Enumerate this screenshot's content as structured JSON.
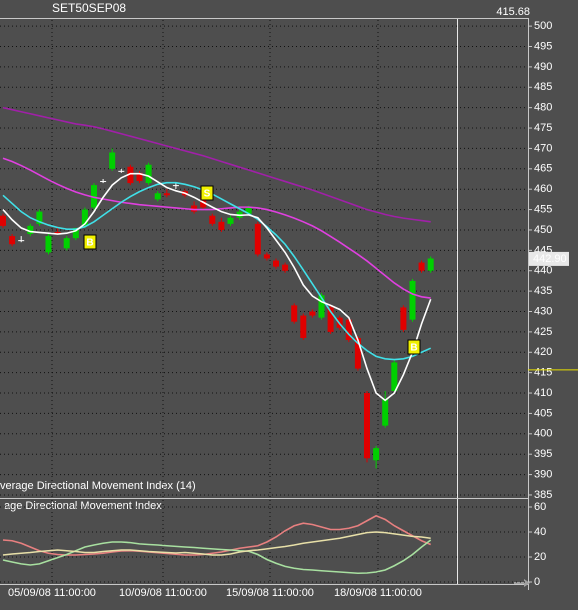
{
  "chart_data": [
    {
      "type": "candlestick",
      "title": "SET50SEP08",
      "cursor_price": 415.68,
      "last_price": {
        "value": 442.9,
        "label": "442.90"
      },
      "ylim": [
        384.5,
        501.5
      ],
      "yticks": [
        385,
        390,
        395,
        400,
        405,
        410,
        415,
        420,
        425,
        430,
        435,
        440,
        445,
        450,
        455,
        460,
        465,
        470,
        475,
        480,
        485,
        490,
        495,
        500
      ],
      "grid": true,
      "x_labels": [
        "05/09/08 11:00:00",
        "10/09/08 11:00:00",
        "15/09/08 11:00:00",
        "18/09/08 11:00:00"
      ],
      "up_color": "#00d000",
      "down_color": "#e00000",
      "flat_color": "#ffffff",
      "candles": {
        "open": [
          453.5,
          448.5,
          447.5,
          449,
          451.5,
          444.5,
          449.5,
          445.5,
          448,
          451,
          455.5,
          462,
          465,
          464.5,
          465.5,
          464,
          461.5,
          457.5,
          459,
          461,
          459.5,
          456,
          458,
          453.5,
          452,
          451.5,
          453,
          454,
          451.5,
          444,
          442.5,
          441.5,
          431.5,
          429,
          430,
          428.5,
          431,
          428.5,
          428,
          423.5,
          410,
          393.5,
          402,
          410.5,
          431,
          428,
          442,
          440
        ],
        "high": [
          454,
          449,
          448.5,
          451.5,
          455,
          449,
          450.5,
          448.5,
          450.5,
          455.5,
          461.5,
          462.5,
          470,
          465,
          466,
          464.5,
          466.5,
          459.5,
          460,
          461.5,
          460,
          457,
          458.5,
          454,
          453,
          453.5,
          455,
          456,
          452,
          444.5,
          443,
          442,
          432,
          429.5,
          430.5,
          434.5,
          431.5,
          429,
          428.5,
          424,
          410.5,
          397,
          410.5,
          418,
          431.5,
          438,
          442.5,
          443.5
        ],
        "low": [
          450.5,
          446,
          447,
          448.5,
          451,
          444,
          449,
          445,
          447.5,
          450.5,
          455,
          461.5,
          464.5,
          464,
          461,
          461.5,
          461,
          457,
          458,
          460,
          458,
          454,
          455,
          451,
          449.5,
          451,
          452.5,
          453.5,
          443.5,
          442.5,
          440.5,
          439.5,
          427,
          423,
          428.5,
          428,
          424.5,
          425.5,
          422.5,
          415.5,
          393,
          391.5,
          401.5,
          410,
          425,
          427.5,
          439.5,
          439.5
        ],
        "close": [
          451,
          446.5,
          447.5,
          451,
          454.5,
          448.5,
          449,
          448,
          450.5,
          455,
          461,
          462,
          469,
          464.5,
          461.5,
          462,
          466,
          459,
          458.5,
          461,
          458.5,
          454.5,
          455.5,
          451.5,
          450,
          453,
          454.5,
          455.5,
          444,
          443,
          441,
          440,
          427.5,
          423.5,
          429,
          434,
          425,
          426,
          423,
          416,
          394,
          396.5,
          408.5,
          417.5,
          425.5,
          437.5,
          440,
          443
        ]
      },
      "signals": [
        "B",
        "S",
        "B"
      ],
      "lines": [
        {
          "color": "#a020a8",
          "values": [
            480,
            479.5,
            479,
            478.5,
            478,
            477.5,
            477,
            476.5,
            476,
            475.7,
            475.3,
            474.8,
            474.2,
            473.6,
            473,
            472.4,
            471.8,
            471.2,
            470.6,
            470,
            469.4,
            468.8,
            468.2,
            467.5,
            466.8,
            466.1,
            465.4,
            464.7,
            464,
            463.3,
            462.6,
            461.9,
            461.2,
            460.5,
            459.8,
            459,
            458.2,
            457.4,
            456.6,
            455.8,
            455,
            454.4,
            453.8,
            453.3,
            452.9,
            452.6,
            452.3,
            452
          ]
        },
        {
          "color": "#e040e0",
          "values": [
            467.6,
            466.8,
            465.8,
            464.7,
            463.5,
            462.3,
            461.2,
            460.2,
            459.3,
            458.6,
            458,
            457.6,
            457.2,
            456.8,
            456.5,
            456.2,
            456,
            455.8,
            455.6,
            455.4,
            455.2,
            455,
            455,
            455,
            455.2,
            455.4,
            455.6,
            455.6,
            455.4,
            455,
            454.4,
            453.7,
            452.9,
            452,
            451,
            449.8,
            448.4,
            447,
            445.5,
            444,
            442.4,
            440.6,
            438.8,
            437,
            435.5,
            434.3,
            433.6,
            433.3
          ]
        },
        {
          "color": "#40e0e8",
          "values": [
            458.5,
            456.5,
            454.5,
            453,
            452,
            451.2,
            450.6,
            450.2,
            450.2,
            450.8,
            452,
            453.6,
            455.2,
            456.8,
            458.2,
            459.4,
            460.4,
            461.2,
            461.6,
            461.6,
            461.2,
            460.6,
            459.8,
            458.8,
            457.6,
            456.4,
            455.2,
            454,
            452.6,
            450.8,
            448.8,
            446.5,
            443.5,
            440.2,
            436.8,
            433.4,
            430,
            427,
            424.4,
            422.2,
            420.4,
            419,
            418.4,
            418.2,
            418.4,
            419,
            420,
            421
          ]
        },
        {
          "color": "#ffffff",
          "values": [
            455,
            452.5,
            450.5,
            449.6,
            449.4,
            449.2,
            449,
            449.2,
            449.8,
            451.5,
            454.5,
            458,
            461,
            462.8,
            463.8,
            463.8,
            463.2,
            461.8,
            460.4,
            459.6,
            459,
            458,
            456.8,
            455.6,
            454.5,
            453.8,
            453.6,
            453.7,
            453,
            450.5,
            447.5,
            444.5,
            440.8,
            436.5,
            433.8,
            432.4,
            431.5,
            430.5,
            428.5,
            423,
            416,
            410,
            408.2,
            410,
            414.5,
            420,
            427,
            433
          ]
        }
      ],
      "indicator_label": "verage Directional Movement Index (14)"
    },
    {
      "type": "line",
      "title": "age Directional Movement Index",
      "ylim": [
        -1.6,
        65.6
      ],
      "yticks": [
        0,
        20,
        40,
        60
      ],
      "grid": true,
      "lines": [
        {
          "color": "#e88080",
          "values": [
            33.6,
            33,
            31,
            28,
            25,
            23,
            22,
            21.6,
            21.6,
            22,
            22.4,
            23,
            24,
            24.8,
            25,
            24.6,
            24,
            23.4,
            22.8,
            22.2,
            21.6,
            21.6,
            22,
            23,
            24,
            25.5,
            27,
            28,
            29,
            32,
            36,
            41,
            45,
            47,
            46,
            44,
            42,
            42,
            43,
            45,
            49,
            53,
            50,
            45,
            41,
            37,
            33,
            30
          ]
        },
        {
          "color": "#a8e0a0",
          "values": [
            17.6,
            16,
            14.5,
            13.6,
            14.5,
            17,
            19.5,
            22,
            25,
            28,
            29.6,
            31,
            32,
            32,
            31.5,
            30.5,
            30,
            29.6,
            29,
            28.5,
            28,
            27.6,
            27,
            26.5,
            26,
            25.6,
            25,
            24.6,
            22,
            18,
            15,
            12.5,
            11,
            10,
            9.6,
            9,
            8.5,
            8,
            7.5,
            7,
            7.2,
            8,
            9.6,
            13,
            17,
            22,
            28,
            33.6
          ]
        },
        {
          "color": "#e8e0a8",
          "values": [
            21.6,
            22.4,
            23,
            23.6,
            24.4,
            25,
            25.6,
            25,
            24.4,
            23.6,
            23.6,
            24.4,
            25,
            25.6,
            25.6,
            25,
            24.4,
            24,
            23.6,
            23.2,
            23.6,
            23,
            22.4,
            21.6,
            21.6,
            22.4,
            24,
            25,
            25.6,
            26.5,
            27.5,
            28.4,
            29.6,
            31,
            32,
            33,
            34,
            35,
            36.5,
            38,
            39.5,
            40,
            39.5,
            38.5,
            37.5,
            36.5,
            36,
            35
          ]
        }
      ]
    }
  ]
}
